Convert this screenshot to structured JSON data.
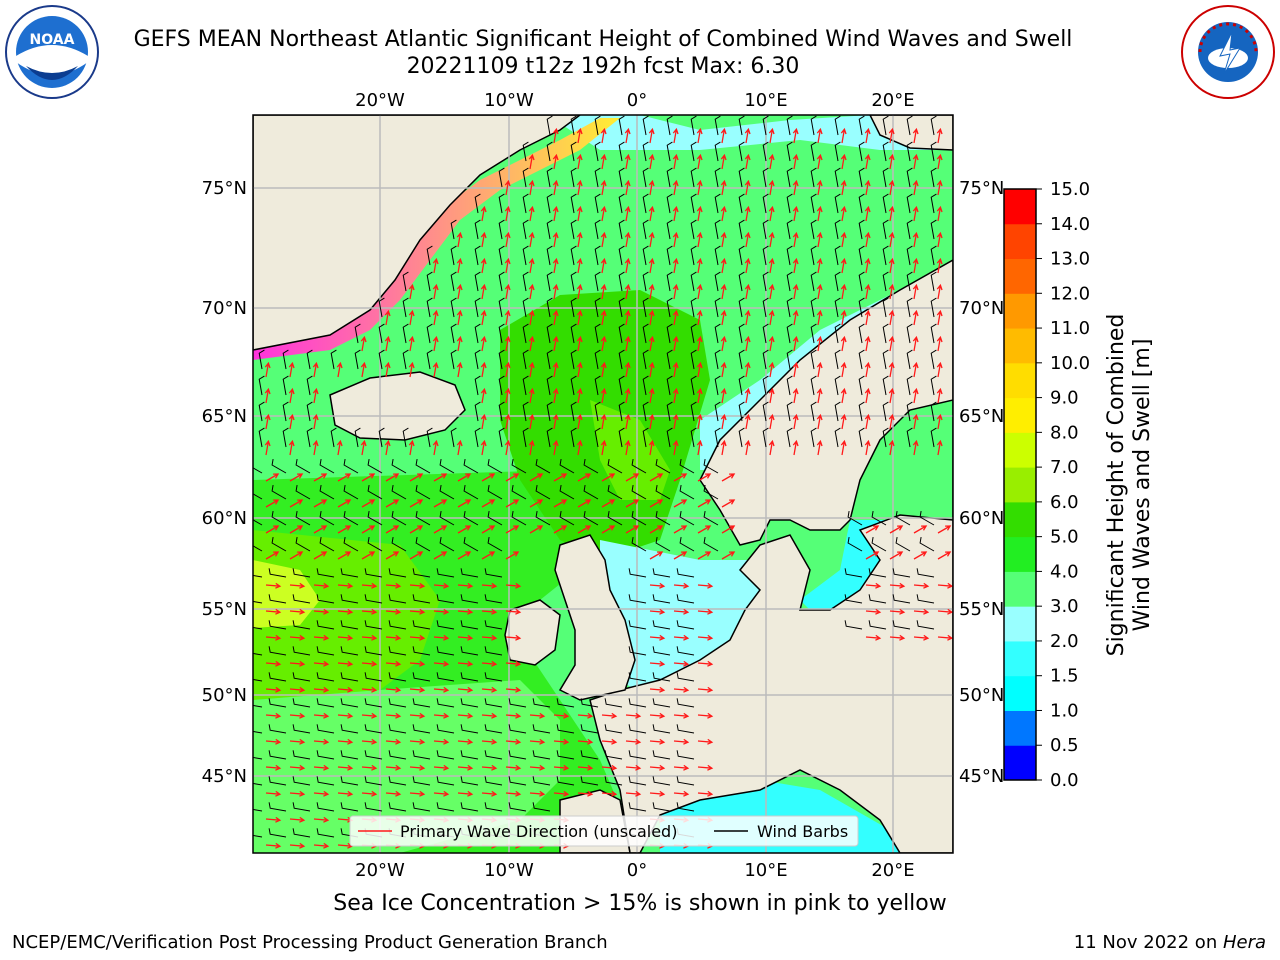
{
  "title": {
    "line1": "GEFS MEAN Northeast Atlantic Significant Height of Combined Wind Waves and Swell",
    "line2": "20221109 t12z 192h fcst   Max: 6.30"
  },
  "map": {
    "lon_labels": [
      "20°W",
      "10°W",
      "0°",
      "10°E",
      "20°E"
    ],
    "lat_labels": [
      "75°N",
      "70°N",
      "65°N",
      "60°N",
      "55°N",
      "50°N",
      "45°N"
    ],
    "legend": {
      "primary_wave": "Primary Wave Direction (unscaled)",
      "wind_barbs": "Wind Barbs"
    },
    "colors": {
      "land": "#efebdc",
      "coast": "#000000",
      "grid": "#bbbbbb",
      "wave_arrow": "#ff1a1a",
      "barb": "#000000",
      "ice_pink": "#ff33dd",
      "ice_yellow": "#ffee33"
    }
  },
  "colorbar": {
    "label_line1": "Significant Height of Combined",
    "label_line2": "Wind Waves and Swell [m]",
    "ticks": [
      "0.0",
      "0.5",
      "1.0",
      "1.5",
      "2.0",
      "3.0",
      "4.0",
      "5.0",
      "6.0",
      "7.0",
      "8.0",
      "9.0",
      "10.0",
      "11.0",
      "12.0",
      "13.0",
      "14.0",
      "15.0"
    ],
    "colors": [
      "#0000ff",
      "#0077ff",
      "#00ffff",
      "#33ffff",
      "#99ffff",
      "#55ff77",
      "#22ee22",
      "#33dd00",
      "#99ee00",
      "#ccff00",
      "#ffee00",
      "#ffdd00",
      "#ffbb00",
      "#ff9900",
      "#ff6600",
      "#ff4400",
      "#ff0000"
    ]
  },
  "footer": {
    "caption": "Sea Ice Concentration > 15% is shown in pink to yellow",
    "branch": "NCEP/EMC/Verification Post Processing Product Generation Branch",
    "date": "11 Nov 2022 on ",
    "machine": "Hera"
  },
  "logos": {
    "left": "noaa-logo",
    "right": "nws-logo",
    "noaa_text": "NOAA",
    "nws_text": "NATIONAL WEATHER SERVICE"
  }
}
